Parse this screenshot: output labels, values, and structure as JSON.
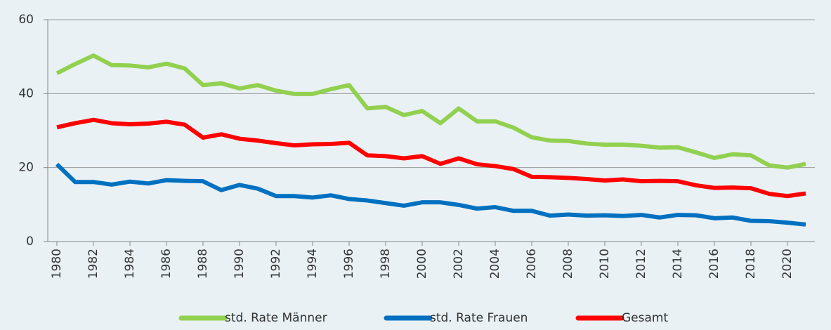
{
  "chart_data": {
    "type": "line",
    "x": [
      1980,
      1981,
      1982,
      1983,
      1984,
      1985,
      1986,
      1987,
      1988,
      1989,
      1990,
      1991,
      1992,
      1993,
      1994,
      1995,
      1996,
      1997,
      1998,
      1999,
      2000,
      2001,
      2002,
      2003,
      2004,
      2005,
      2006,
      2007,
      2008,
      2009,
      2010,
      2011,
      2012,
      2013,
      2014,
      2015,
      2016,
      2017,
      2018,
      2019,
      2020,
      2021
    ],
    "series": [
      {
        "name": "std. Rate Männer",
        "color": "#92d050",
        "values": [
          45.5,
          48,
          50.3,
          47.7,
          47.6,
          47.1,
          48.1,
          46.8,
          42.3,
          42.8,
          41.4,
          42.3,
          40.8,
          39.9,
          39.9,
          41.2,
          42.3,
          36.0,
          36.4,
          34.2,
          35.3,
          32.0,
          36.0,
          32.5,
          32.5,
          30.8,
          28.2,
          27.3,
          27.2,
          26.5,
          26.2,
          26.2,
          25.9,
          25.4,
          25.5,
          24.1,
          22.6,
          23.6,
          23.3,
          20.6,
          20.0,
          21.0
        ]
      },
      {
        "name": "std. Rate Frauen",
        "color": "#0070c0",
        "values": [
          20.9,
          16.1,
          16.1,
          15.4,
          16.2,
          15.7,
          16.6,
          16.4,
          16.3,
          13.9,
          15.3,
          14.3,
          12.3,
          12.3,
          11.9,
          12.5,
          11.5,
          11.1,
          10.4,
          9.7,
          10.6,
          10.6,
          9.9,
          8.9,
          9.3,
          8.3,
          8.3,
          7.0,
          7.3,
          7.0,
          7.1,
          6.9,
          7.2,
          6.5,
          7.2,
          7.1,
          6.3,
          6.5,
          5.6,
          5.5,
          5.1,
          4.6
        ]
      },
      {
        "name": "Gesamt",
        "color": "#ff0000",
        "values": [
          30.9,
          32.0,
          32.9,
          32.0,
          31.7,
          31.9,
          32.4,
          31.6,
          28.1,
          29.0,
          27.8,
          27.3,
          26.6,
          26.0,
          26.3,
          26.4,
          26.7,
          23.3,
          23.1,
          22.5,
          23.1,
          21.0,
          22.5,
          20.9,
          20.4,
          19.6,
          17.5,
          17.4,
          17.2,
          16.9,
          16.5,
          16.8,
          16.3,
          16.4,
          16.3,
          15.2,
          14.5,
          14.6,
          14.4,
          12.9,
          12.3,
          13.0
        ]
      }
    ],
    "xlim": [
      1979.5,
      2021.5
    ],
    "xticks": [
      1980,
      1982,
      1984,
      1986,
      1988,
      1990,
      1992,
      1994,
      1996,
      1998,
      2000,
      2002,
      2004,
      2006,
      2008,
      2010,
      2012,
      2014,
      2016,
      2018,
      2020
    ],
    "ylim": [
      0,
      60
    ],
    "yticks": [
      0,
      20,
      40,
      60
    ],
    "grid": true,
    "legend": "bottom"
  }
}
